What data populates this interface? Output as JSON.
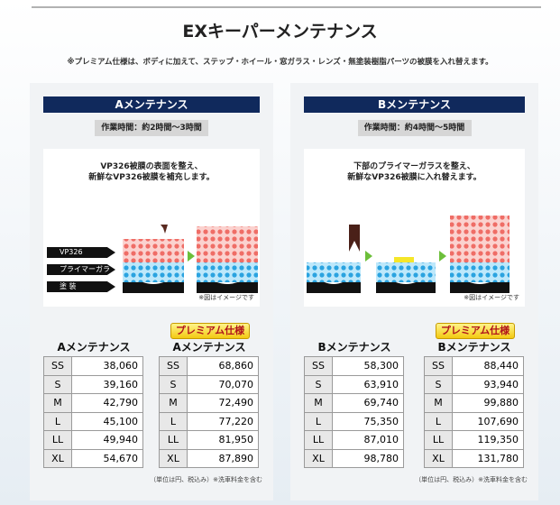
{
  "title": "EXキーパーメンテナンス",
  "note": "※プレミアム仕様は、ボディに加えて、ステップ・ホイール・窓ガラス・レンズ・無塗装樹脂パーツの被膜を入れ替えます。",
  "panels": [
    {
      "heading": "Aメンテナンス",
      "work_time": "作業時間：約2時間～3時間",
      "caption": [
        "VP326被膜の表面を整え、",
        "新鮮なVP326被膜を補充します。"
      ],
      "layer_labels": [
        "VP326",
        "プライマーガラス",
        "塗 装"
      ],
      "image_note": "※図はイメージです",
      "premium_badge": "プレミアム仕様",
      "tables": [
        {
          "title": "Aメンテナンス",
          "rows": [
            [
              "SS",
              "38,060"
            ],
            [
              "S",
              "39,160"
            ],
            [
              "M",
              "42,790"
            ],
            [
              "L",
              "45,100"
            ],
            [
              "LL",
              "49,940"
            ],
            [
              "XL",
              "54,670"
            ]
          ]
        },
        {
          "title": "Aメンテナンス",
          "rows": [
            [
              "SS",
              "68,860"
            ],
            [
              "S",
              "70,070"
            ],
            [
              "M",
              "72,490"
            ],
            [
              "L",
              "77,220"
            ],
            [
              "LL",
              "81,950"
            ],
            [
              "XL",
              "87,890"
            ]
          ]
        }
      ],
      "footnote": "（単位は円、税込み）※洗車料金を含む"
    },
    {
      "heading": "Bメンテナンス",
      "work_time": "作業時間：約4時間～5時間",
      "caption": [
        "下部のプライマーガラスを整え、",
        "新鮮なVP326被膜に入れ替えます。"
      ],
      "image_note": "※図はイメージです",
      "premium_badge": "プレミアム仕様",
      "tables": [
        {
          "title": "Bメンテナンス",
          "rows": [
            [
              "SS",
              "58,300"
            ],
            [
              "S",
              "63,910"
            ],
            [
              "M",
              "69,740"
            ],
            [
              "L",
              "75,350"
            ],
            [
              "LL",
              "87,010"
            ],
            [
              "XL",
              "98,780"
            ]
          ]
        },
        {
          "title": "Bメンテナンス",
          "rows": [
            [
              "SS",
              "88,440"
            ],
            [
              "S",
              "93,940"
            ],
            [
              "M",
              "99,880"
            ],
            [
              "L",
              "107,690"
            ],
            [
              "LL",
              "119,350"
            ],
            [
              "XL",
              "131,780"
            ]
          ]
        }
      ],
      "footnote": "（単位は円、税込み）※洗車料金を含む"
    }
  ]
}
